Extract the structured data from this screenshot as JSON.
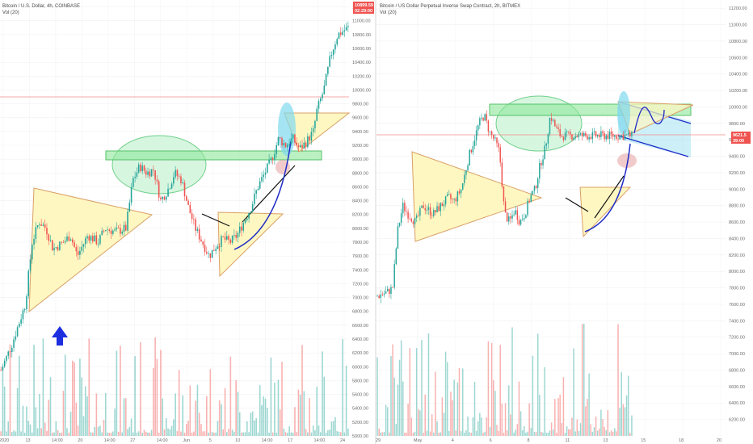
{
  "left_panel": {
    "title": "Bitcoin / U.S. Dollar, 4h, COINBASE",
    "indicator": "Vol (20)",
    "price_badge": "10899.59",
    "price_badge_sub": "02:29:00"
  },
  "right_panel": {
    "title": "Bitcoin / US Dollar Perpetual Inverse Swap Contract, 2h, BITMEX",
    "indicator": "Vol (20)",
    "price_badge": "9621.5",
    "price_badge_sub": "39:00"
  },
  "colors": {
    "up": "#26a69a",
    "down": "#ef5350",
    "triangle_fill": "#fff7c2",
    "triangle_stroke": "#d9a066",
    "zone_fill": "#8ee89a",
    "ellipse_fill": "#b8f0c8",
    "cyan_fill": "#7fd8ee",
    "arrow": "#1d2ee0",
    "badge": "#ef5350"
  },
  "chart_data": [
    {
      "type": "candlestick",
      "title": "Bitcoin / U.S. Dollar, 4h, COINBASE",
      "series_sub": "Vol (20)",
      "ylim": [
        5000,
        11300
      ],
      "y_ticks": [
        "11200.00",
        "11000.00",
        "10800.00",
        "10600.00",
        "10400.00",
        "10200.00",
        "10000.00",
        "9800.00",
        "9600.00",
        "9400.00",
        "9200.00",
        "9000.00",
        "8800.00",
        "8600.00",
        "8400.00",
        "8200.00",
        "8000.00",
        "7800.00",
        "7600.00",
        "7400.00",
        "7200.00",
        "7000.00",
        "6800.00",
        "6600.00",
        "6400.00",
        "6200.00",
        "6000.00",
        "5800.00",
        "5600.00",
        "5400.00",
        "5200.00",
        "5000.00"
      ],
      "x_ticks": [
        "2020",
        "13",
        "14:00",
        "20",
        "14:00",
        "27",
        "14:00",
        "Jun",
        "5",
        "10",
        "14:00",
        "17",
        "14:00",
        "24"
      ],
      "price_path": [
        [
          0,
          5950
        ],
        [
          0.03,
          6300
        ],
        [
          0.07,
          6900
        ],
        [
          0.09,
          7800
        ],
        [
          0.11,
          8100
        ],
        [
          0.13,
          8000
        ],
        [
          0.15,
          7700
        ],
        [
          0.18,
          7800
        ],
        [
          0.2,
          7900
        ],
        [
          0.22,
          7600
        ],
        [
          0.25,
          7900
        ],
        [
          0.28,
          7800
        ],
        [
          0.3,
          8000
        ],
        [
          0.33,
          7950
        ],
        [
          0.36,
          8000
        ],
        [
          0.38,
          8700
        ],
        [
          0.4,
          8900
        ],
        [
          0.42,
          8800
        ],
        [
          0.44,
          8850
        ],
        [
          0.46,
          8400
        ],
        [
          0.48,
          8550
        ],
        [
          0.5,
          8800
        ],
        [
          0.52,
          8700
        ],
        [
          0.54,
          8300
        ],
        [
          0.56,
          8000
        ],
        [
          0.58,
          7800
        ],
        [
          0.6,
          7600
        ],
        [
          0.62,
          7750
        ],
        [
          0.64,
          7850
        ],
        [
          0.66,
          7800
        ],
        [
          0.68,
          7900
        ],
        [
          0.7,
          8100
        ],
        [
          0.72,
          8300
        ],
        [
          0.74,
          8600
        ],
        [
          0.76,
          8800
        ],
        [
          0.78,
          9000
        ],
        [
          0.8,
          9300
        ],
        [
          0.82,
          9200
        ],
        [
          0.84,
          9300
        ],
        [
          0.86,
          9150
        ],
        [
          0.88,
          9250
        ],
        [
          0.9,
          9400
        ],
        [
          0.91,
          9700
        ],
        [
          0.93,
          10000
        ],
        [
          0.95,
          10500
        ],
        [
          0.97,
          10800
        ],
        [
          1.0,
          10900
        ]
      ],
      "annotations": [
        "triangle",
        "triangle",
        "triangle",
        "resistance-zone",
        "ellipse",
        "ellipse",
        "up-arrow",
        "trendlines",
        "curve"
      ]
    },
    {
      "type": "candlestick",
      "title": "Bitcoin / US Dollar Perpetual Inverse Swap Contract, 2h, BITMEX",
      "series_sub": "Vol (20)",
      "ylim": [
        6000,
        11300
      ],
      "y_ticks": [
        "11200.00",
        "11000.00",
        "10800.00",
        "10600.00",
        "10400.00",
        "10200.00",
        "10000.00",
        "9800.00",
        "9600.00",
        "9400.00",
        "9200.00",
        "9000.00",
        "8800.00",
        "8600.00",
        "8400.00",
        "8200.00",
        "8000.00",
        "7800.00",
        "7600.00",
        "7400.00",
        "7200.00",
        "7000.00",
        "6800.00",
        "6600.00",
        "6400.00",
        "6200.00"
      ],
      "x_ticks": [
        "29",
        "May",
        "4",
        "6",
        "8",
        "11",
        "13",
        "15",
        "18",
        "20"
      ],
      "price_path": [
        [
          0,
          7700
        ],
        [
          0.04,
          7750
        ],
        [
          0.06,
          7800
        ],
        [
          0.08,
          8500
        ],
        [
          0.1,
          8800
        ],
        [
          0.12,
          8700
        ],
        [
          0.15,
          8600
        ],
        [
          0.18,
          8800
        ],
        [
          0.22,
          8700
        ],
        [
          0.25,
          8800
        ],
        [
          0.28,
          8900
        ],
        [
          0.3,
          8850
        ],
        [
          0.33,
          9000
        ],
        [
          0.36,
          9400
        ],
        [
          0.38,
          9600
        ],
        [
          0.4,
          9800
        ],
        [
          0.42,
          9900
        ],
        [
          0.44,
          9700
        ],
        [
          0.46,
          9600
        ],
        [
          0.48,
          9450
        ],
        [
          0.5,
          8700
        ],
        [
          0.52,
          8600
        ],
        [
          0.54,
          8750
        ],
        [
          0.56,
          8600
        ],
        [
          0.58,
          8700
        ],
        [
          0.6,
          8900
        ],
        [
          0.62,
          9000
        ],
        [
          0.64,
          9300
        ],
        [
          0.66,
          9500
        ],
        [
          0.68,
          9900
        ],
        [
          0.7,
          9750
        ],
        [
          0.72,
          9650
        ]
      ],
      "annotations": [
        "triangle",
        "triangle",
        "resistance-zone",
        "ellipse",
        "ellipse",
        "channel",
        "trendlines",
        "curve"
      ]
    }
  ]
}
